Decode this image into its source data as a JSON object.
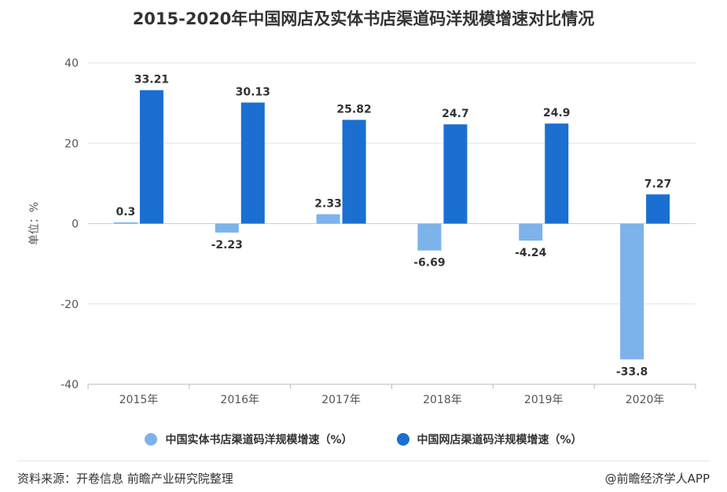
{
  "chart_data": {
    "type": "bar",
    "title": "2015-2020年中国网店及实体书店渠道码洋规模增速对比情况",
    "ylabel": "单位：%",
    "xlabel": "",
    "categories": [
      "2015年",
      "2016年",
      "2017年",
      "2018年",
      "2019年",
      "2020年"
    ],
    "ylim": [
      -40,
      40
    ],
    "yticks": [
      -40,
      -20,
      0,
      20,
      40
    ],
    "grid": true,
    "legend_position": "bottom",
    "series": [
      {
        "name": "中国实体书店渠道码洋规模增速（%）",
        "values": [
          0.3,
          -2.23,
          2.33,
          -6.69,
          -4.24,
          -33.8
        ],
        "color": "#7db3ea",
        "labels": [
          "0.3",
          "-2.23",
          "2.33",
          "-6.69",
          "-4.24",
          "-33.8"
        ]
      },
      {
        "name": "中国网店渠道码洋规模增速（%）",
        "values": [
          33.21,
          30.13,
          25.82,
          24.7,
          24.9,
          7.27
        ],
        "color": "#1a6fd1",
        "labels": [
          "33.21",
          "30.13",
          "25.82",
          "24.7",
          "24.9",
          "7.27"
        ]
      }
    ]
  },
  "footer": {
    "source": "资料来源：开卷信息 前瞻产业研究院整理",
    "credit": "@前瞻经济学人APP"
  }
}
